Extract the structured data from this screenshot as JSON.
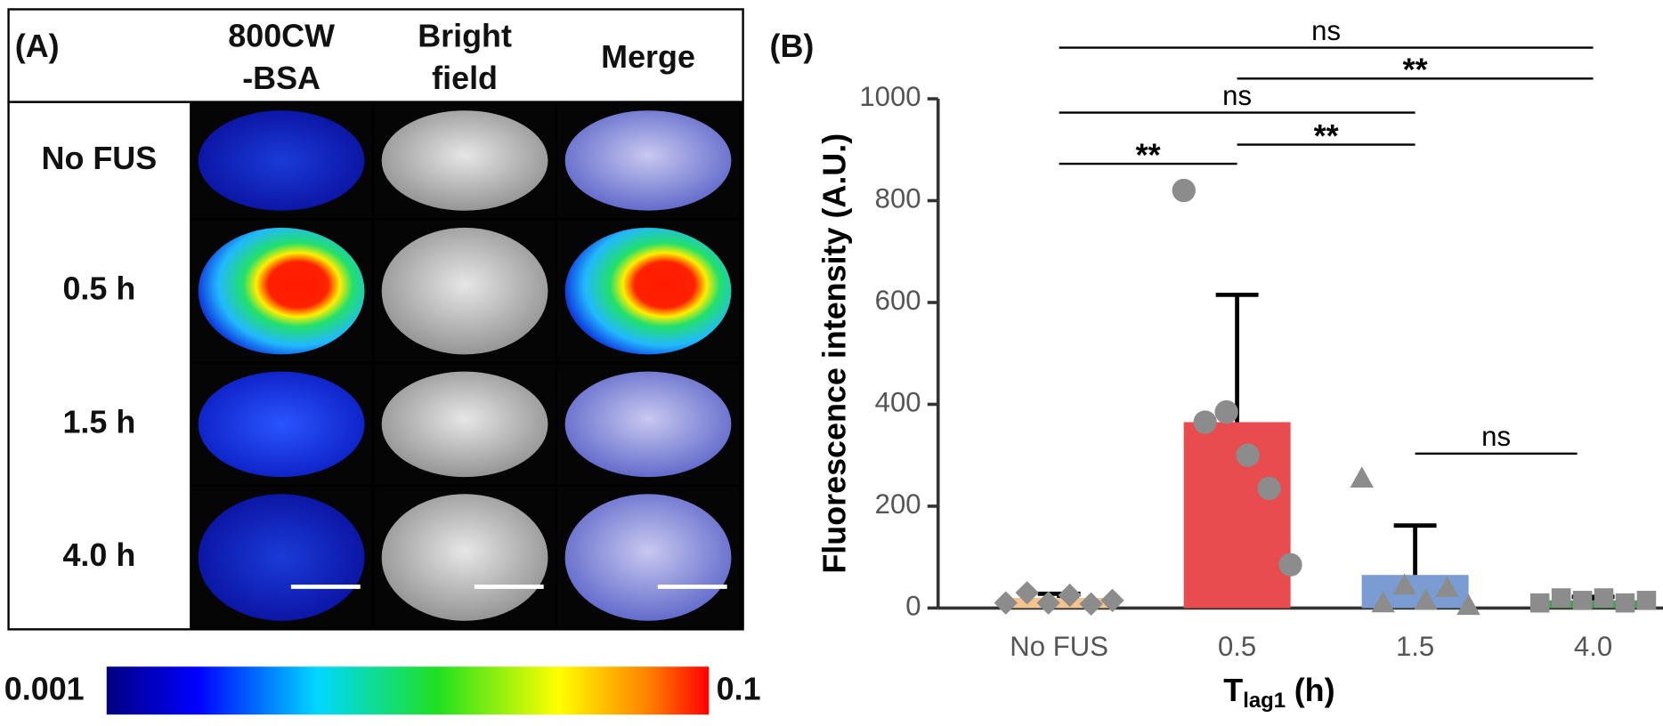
{
  "panel_a": {
    "label": "(A)",
    "columns": [
      [
        "800CW",
        "-BSA"
      ],
      [
        "Bright",
        "field"
      ],
      [
        "Merge"
      ]
    ],
    "rows": [
      "No FUS",
      "0.5 h",
      "1.5 h",
      "4.0 h"
    ],
    "colorbar": {
      "min": 0.001,
      "max": 0.1
    }
  },
  "chart_data": {
    "type": "bar",
    "label": "(B)",
    "ylabel": "Fluorescence intensity (A.U.)",
    "xlabel": {
      "main": "T",
      "sub": "lag1",
      "unit": "(h)"
    },
    "categories": [
      "No FUS",
      "0.5",
      "1.5",
      "4.0"
    ],
    "values": [
      20,
      365,
      65,
      15
    ],
    "errors": [
      8,
      250,
      97,
      7
    ],
    "colors": [
      "#f3c48e",
      "#e84c4f",
      "#7b9bd3",
      "#3fa34d"
    ],
    "points": [
      [
        10,
        30,
        10,
        25,
        8,
        15
      ],
      [
        820,
        365,
        385,
        300,
        235,
        85
      ],
      [
        255,
        10,
        45,
        15,
        40,
        5
      ],
      [
        10,
        20,
        15,
        20,
        10,
        15
      ]
    ],
    "point_markers": [
      "diamond",
      "circle",
      "triangle",
      "square"
    ],
    "point_color": "#8c8c8c",
    "ylim": [
      0,
      1000
    ],
    "yticks": [
      0,
      200,
      400,
      600,
      800,
      1000
    ],
    "annotations": [
      {
        "from": 0,
        "to": 3,
        "label": "ns"
      },
      {
        "from": 1,
        "to": 3,
        "label": "**"
      },
      {
        "from": 0,
        "to": 2,
        "label": "ns"
      },
      {
        "from": 1,
        "to": 2,
        "label": "**"
      },
      {
        "from": 0,
        "to": 1,
        "label": "**"
      },
      {
        "from": 2,
        "to": 3,
        "label": "ns"
      }
    ]
  }
}
